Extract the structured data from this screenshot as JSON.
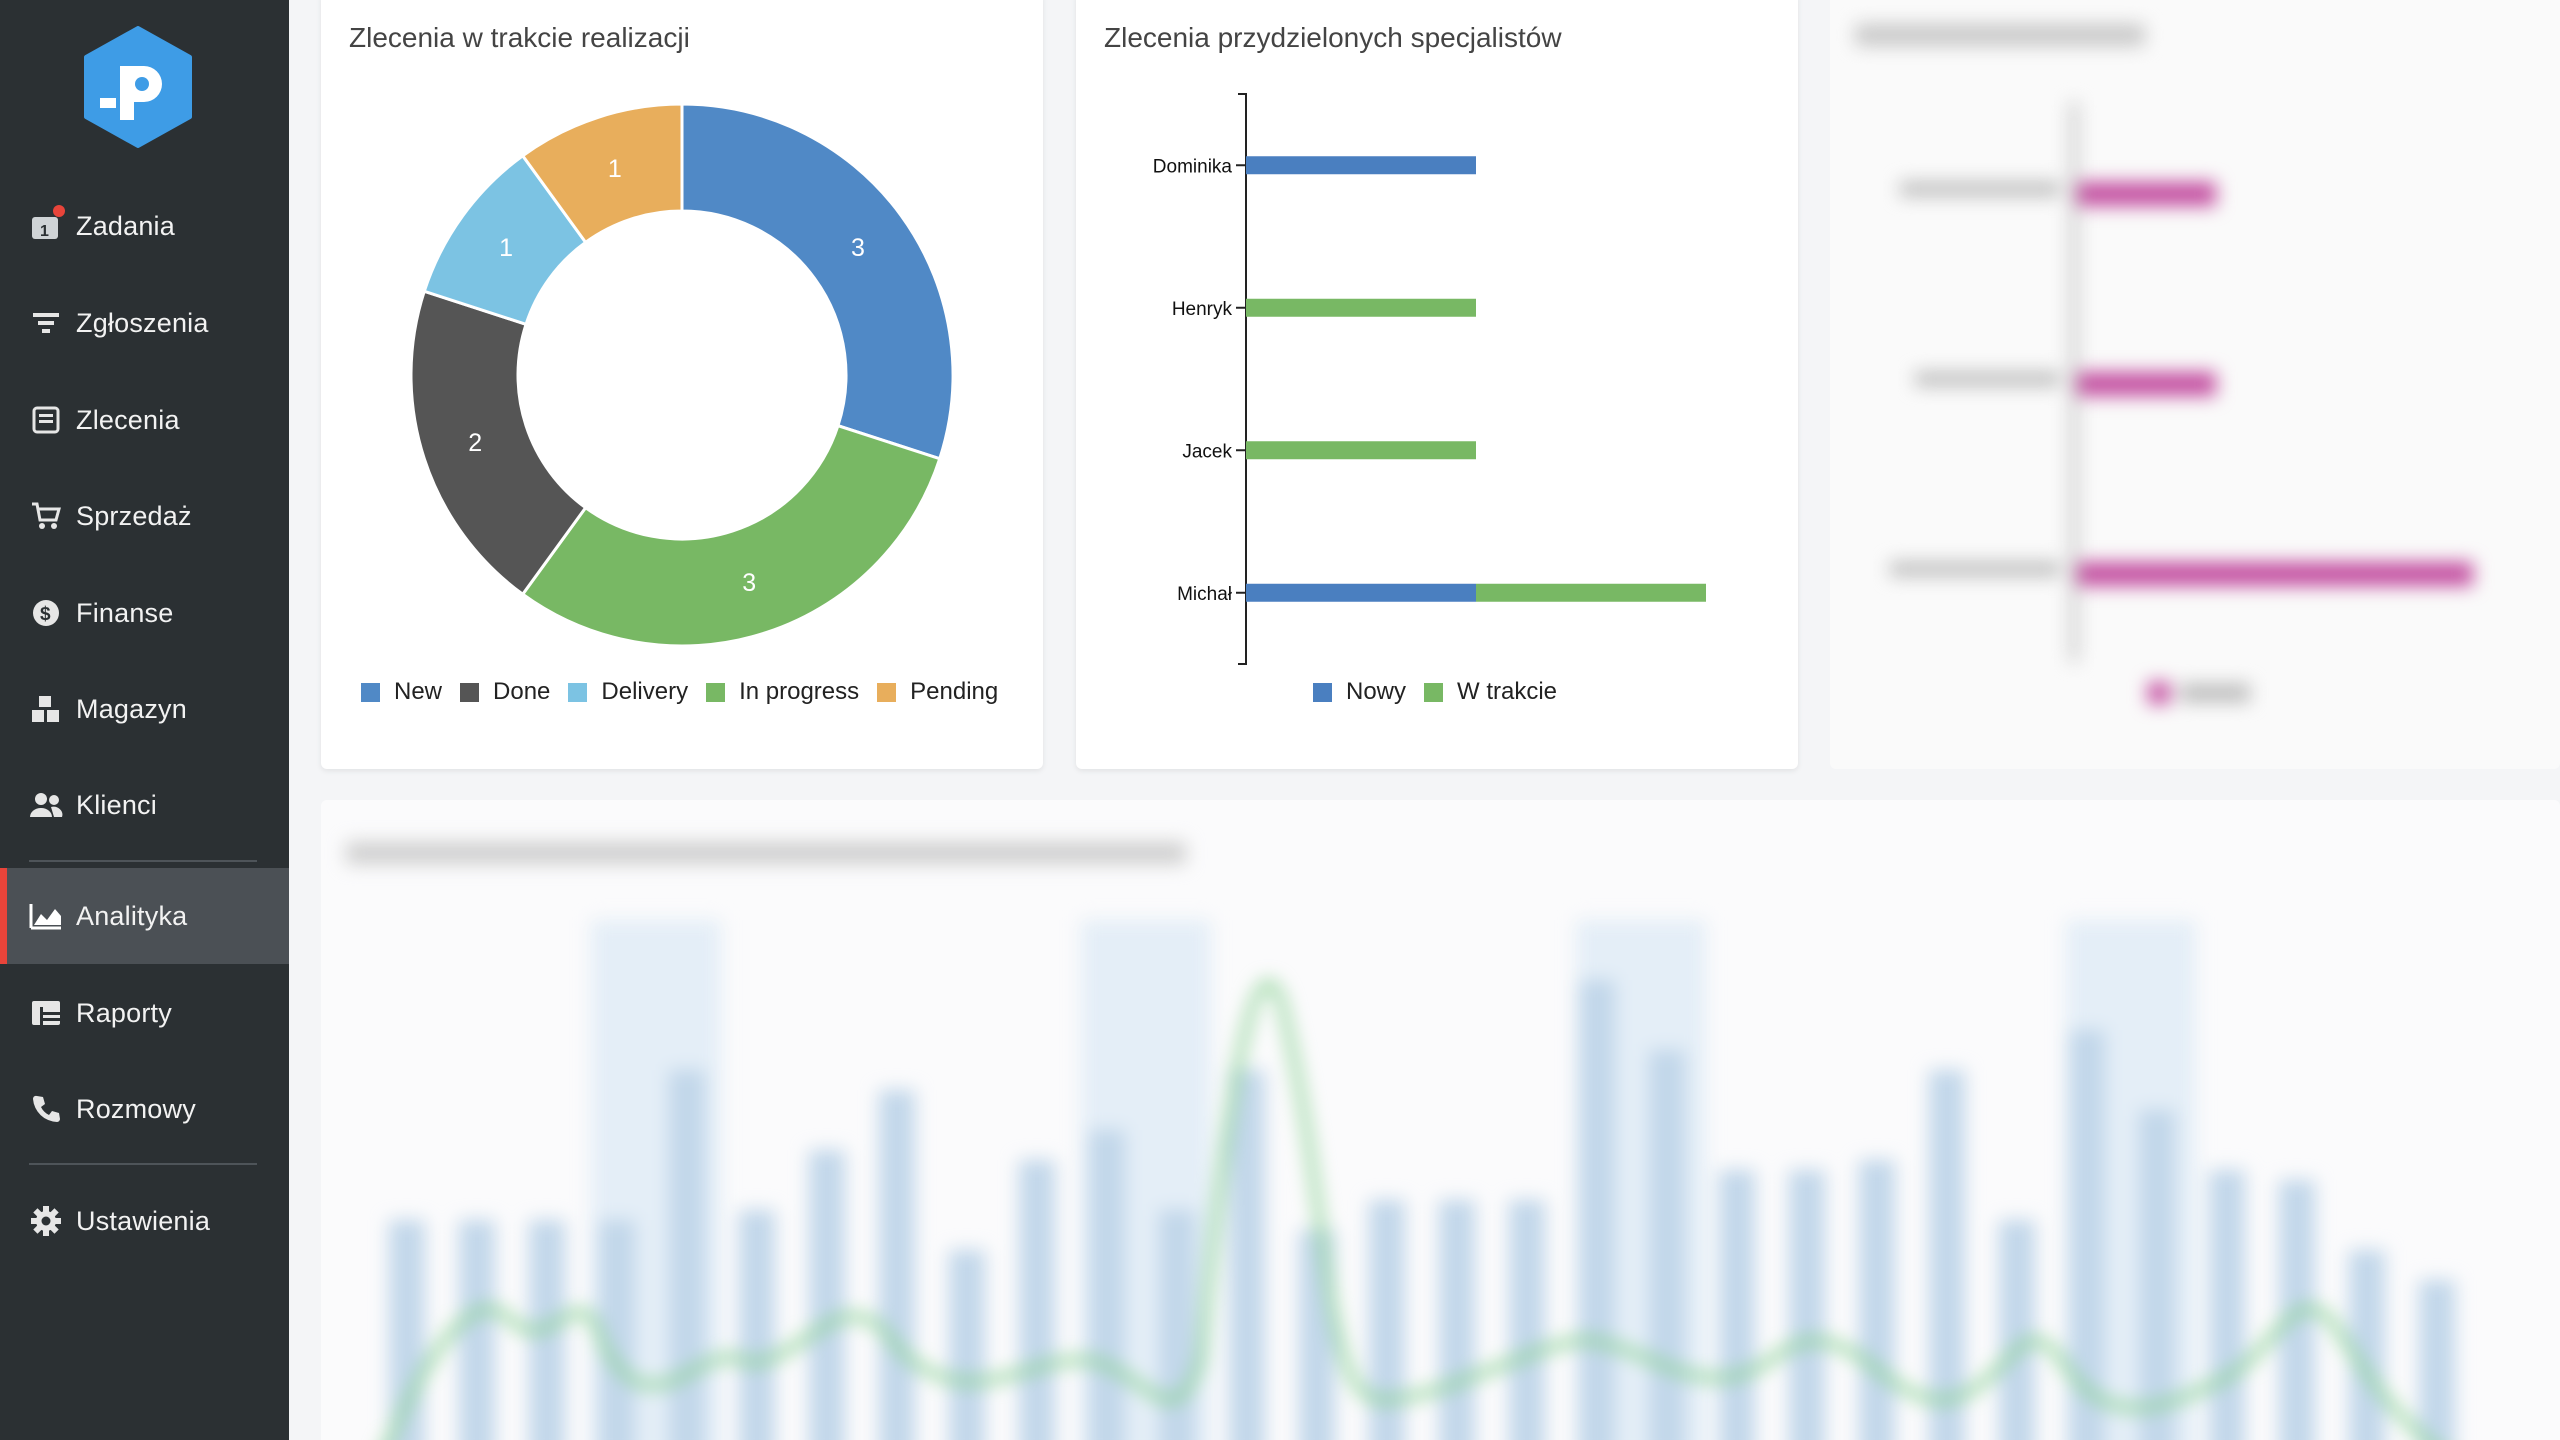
{
  "sidebar": {
    "items": [
      {
        "label": "Zadania",
        "icon": "task-badge-icon"
      },
      {
        "label": "Zgłoszenia",
        "icon": "filter-icon"
      },
      {
        "label": "Zlecenia",
        "icon": "clipboard-icon"
      },
      {
        "label": "Sprzedaż",
        "icon": "cart-icon"
      },
      {
        "label": "Finanse",
        "icon": "dollar-icon"
      },
      {
        "label": "Magazyn",
        "icon": "boxes-icon"
      },
      {
        "label": "Klienci",
        "icon": "users-icon"
      },
      {
        "label": "Analityka",
        "icon": "chart-area-icon",
        "active": true
      },
      {
        "label": "Raporty",
        "icon": "table-icon"
      },
      {
        "label": "Rozmowy",
        "icon": "phone-icon"
      },
      {
        "label": "Ustawienia",
        "icon": "gear-icon"
      }
    ]
  },
  "colors": {
    "sidebar_bg": "#2b3033",
    "active_bg": "#4b5055",
    "accent_red": "#e8443a",
    "blue": "#5089c6",
    "dark": "#555555",
    "light_blue": "#7cc3e3",
    "green": "#78b864",
    "orange": "#e8ae5c",
    "magenta": "#b33a8f"
  },
  "donut_card": {
    "title": "Zlecenia w trakcie realizacji",
    "chart_data": {
      "type": "pie",
      "donut": true,
      "slices": [
        {
          "label": "New",
          "value": 3,
          "color": "#5089c6"
        },
        {
          "label": "In progress",
          "value": 3,
          "color": "#78b864"
        },
        {
          "label": "Done",
          "value": 2,
          "color": "#555555"
        },
        {
          "label": "Delivery",
          "value": 1,
          "color": "#7cc3e3"
        },
        {
          "label": "Pending",
          "value": 1,
          "color": "#e8ae5c"
        }
      ],
      "legend_order": [
        "New",
        "Done",
        "Delivery",
        "In progress",
        "Pending"
      ],
      "legend_position": "bottom"
    }
  },
  "bar_card": {
    "title": "Zlecenia przydzielonych specjalistów",
    "chart_data": {
      "type": "bar",
      "orientation": "horizontal",
      "stacked": true,
      "categories": [
        "Dominika",
        "Henryk",
        "Jacek",
        "Michał"
      ],
      "series": [
        {
          "name": "Nowy",
          "values": [
            1,
            0,
            0,
            1
          ],
          "color": "#4a7fc0"
        },
        {
          "name": "W trakcie",
          "values": [
            0,
            1,
            1,
            1
          ],
          "color": "#78b864"
        }
      ],
      "xlim": [
        0,
        2.6
      ],
      "legend_position": "bottom"
    }
  }
}
